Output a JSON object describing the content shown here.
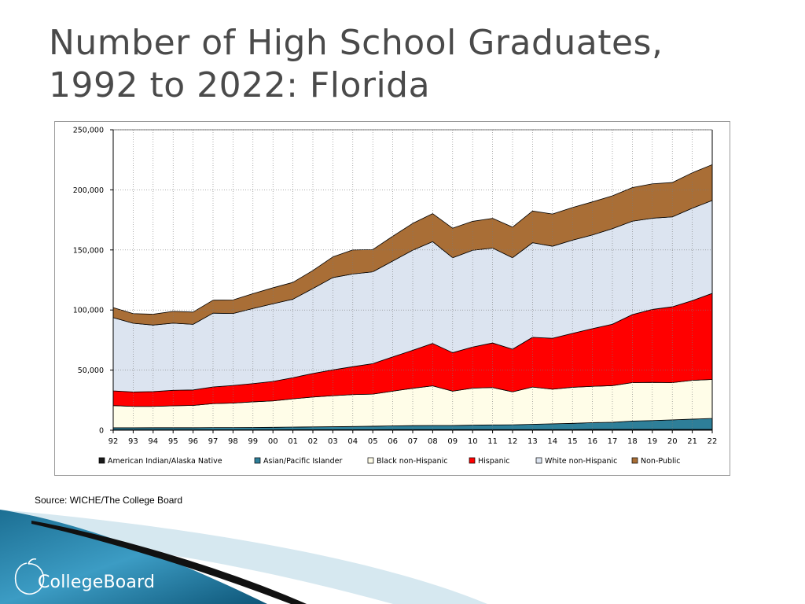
{
  "slide": {
    "title_line1": "Number of High School Graduates,",
    "title_line2": "1992 to 2022:  Florida",
    "source": "Source: WICHE/The College Board",
    "brand": "CollegeBoard"
  },
  "chart_data": {
    "type": "area",
    "stacked": true,
    "title": "",
    "xlabel": "",
    "ylabel": "",
    "categories": [
      "92",
      "93",
      "94",
      "95",
      "96",
      "97",
      "98",
      "99",
      "00",
      "01",
      "02",
      "03",
      "04",
      "05",
      "06",
      "07",
      "08",
      "09",
      "10",
      "11",
      "12",
      "13",
      "14",
      "15",
      "16",
      "17",
      "18",
      "19",
      "20",
      "21",
      "22"
    ],
    "ylim": [
      0,
      250000
    ],
    "yticks": [
      0,
      50000,
      100000,
      150000,
      200000,
      250000
    ],
    "ytick_labels": [
      "0",
      "50,000",
      "100,000",
      "150,000",
      "200,000",
      "250,000"
    ],
    "grid": true,
    "legend_position": "bottom",
    "series": [
      {
        "name": "American Indian/Alaska  Native",
        "color": "#1a1a1a",
        "values": [
          300,
          300,
          300,
          300,
          300,
          300,
          300,
          300,
          300,
          400,
          400,
          400,
          400,
          400,
          500,
          500,
          500,
          500,
          500,
          500,
          500,
          500,
          500,
          500,
          600,
          600,
          600,
          600,
          600,
          600,
          600
        ]
      },
      {
        "name": "Asian/Pacific Islander",
        "color": "#2e7f99",
        "values": [
          1700,
          1700,
          1800,
          1800,
          1800,
          1900,
          1900,
          2000,
          2100,
          2200,
          2400,
          2500,
          2700,
          2900,
          3100,
          3300,
          3400,
          3400,
          3700,
          3900,
          4000,
          4400,
          4800,
          5200,
          5700,
          6000,
          7000,
          7400,
          8000,
          8600,
          9200
        ]
      },
      {
        "name": "Black non-Hispanic",
        "color": "#fffde8",
        "values": [
          18500,
          17800,
          17700,
          18200,
          18500,
          19900,
          20400,
          21300,
          22000,
          23500,
          24800,
          25800,
          26500,
          26700,
          28900,
          31100,
          33000,
          28600,
          30800,
          31100,
          27400,
          31000,
          28800,
          30000,
          30200,
          30500,
          32000,
          31800,
          31000,
          32300,
          32400
        ]
      },
      {
        "name": "Hispanic",
        "color": "#ff0000",
        "values": [
          12200,
          12000,
          12300,
          12900,
          12900,
          13900,
          14600,
          15200,
          16200,
          17600,
          19600,
          21500,
          23300,
          25400,
          28500,
          31600,
          35300,
          32000,
          34200,
          37100,
          35500,
          41400,
          42400,
          44900,
          48000,
          51100,
          56600,
          60700,
          63100,
          66300,
          71700
        ]
      },
      {
        "name": "White non-Hispanic",
        "color": "#dce4f0",
        "values": [
          61000,
          57200,
          55400,
          55900,
          54600,
          61400,
          59900,
          62500,
          64600,
          65300,
          70700,
          76800,
          77100,
          76400,
          79800,
          83300,
          84700,
          79000,
          80500,
          79000,
          76100,
          78700,
          76600,
          77500,
          78000,
          79500,
          77700,
          75900,
          74800,
          76900,
          77300
        ]
      },
      {
        "name": "Non-Public",
        "color": "#a96e36",
        "values": [
          8300,
          8000,
          9000,
          9800,
          10200,
          10800,
          11300,
          12300,
          13300,
          14000,
          15000,
          17200,
          20000,
          18500,
          20600,
          22300,
          23300,
          24600,
          24100,
          24700,
          25500,
          26400,
          26800,
          27200,
          27500,
          27300,
          28000,
          28600,
          28600,
          29500,
          29800
        ]
      }
    ]
  }
}
